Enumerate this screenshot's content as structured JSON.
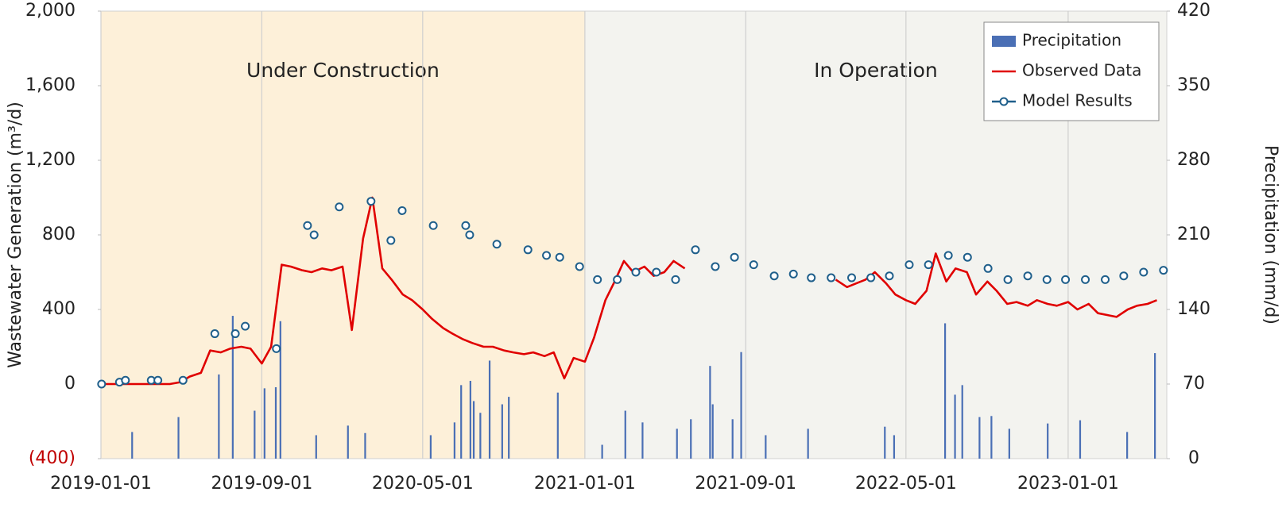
{
  "chart_data": {
    "type": "line",
    "y_label": "Wastewater Generation (m³/d)",
    "y2_label": "Precipitation (mm/d)",
    "xlim": [
      "2019-01-01",
      "2023-05-30"
    ],
    "xticks": [
      "2019-01-01",
      "2019-09-01",
      "2020-05-01",
      "2021-01-01",
      "2021-09-01",
      "2022-05-01",
      "2023-01-01"
    ],
    "ylim": [
      -400,
      2000
    ],
    "yticks": [
      {
        "value": -400,
        "label": "(400)"
      },
      0,
      400,
      800,
      {
        "value": 1200,
        "label": "1,200"
      },
      {
        "value": 1600,
        "label": "1,600"
      },
      {
        "value": 2000,
        "label": "2,000"
      }
    ],
    "negative_tick_color": "#c00000",
    "y2lim": [
      0,
      420
    ],
    "y2ticks": [
      0,
      70,
      140,
      210,
      280,
      350,
      420
    ],
    "grid": true,
    "legend": "upper right",
    "regions": [
      {
        "label": "Under Construction",
        "start": "2019-01-01",
        "end": "2021-01-01",
        "color": "#fdf0d9"
      },
      {
        "label": "In Operation",
        "start": "2021-01-01",
        "end": "2023-05-30",
        "color": "#f3f3ef"
      }
    ],
    "series": [
      {
        "name": "Precipitation",
        "type": "bar",
        "axis": "y2",
        "color": "#4a6fb5",
        "x": [
          "2019-02-17",
          "2019-04-28",
          "2019-06-28",
          "2019-07-19",
          "2019-08-21",
          "2019-09-05",
          "2019-09-22",
          "2019-09-29",
          "2019-11-22",
          "2020-01-09",
          "2020-02-04",
          "2020-05-13",
          "2020-06-18",
          "2020-06-28",
          "2020-07-12",
          "2020-07-17",
          "2020-07-27",
          "2020-08-10",
          "2020-08-29",
          "2020-09-08",
          "2020-11-21",
          "2021-01-27",
          "2021-03-03",
          "2021-03-29",
          "2021-05-20",
          "2021-06-10",
          "2021-07-09",
          "2021-07-13",
          "2021-08-12",
          "2021-08-25",
          "2021-10-01",
          "2021-12-04",
          "2022-03-30",
          "2022-04-13",
          "2022-06-29",
          "2022-07-14",
          "2022-07-25",
          "2022-08-20",
          "2022-09-07",
          "2022-10-04",
          "2022-12-01",
          "2023-01-19",
          "2023-03-31",
          "2023-05-12"
        ],
        "values": [
          25,
          39,
          79,
          134,
          45,
          66,
          67,
          129,
          22,
          31,
          24,
          22,
          34,
          69,
          73,
          54,
          43,
          92,
          51,
          58,
          62,
          13,
          45,
          34,
          28,
          37,
          87,
          51,
          37,
          100,
          22,
          28,
          30,
          22,
          127,
          60,
          69,
          39,
          40,
          28,
          33,
          36,
          25,
          99
        ]
      },
      {
        "name": "Observed Data",
        "type": "line",
        "color": "#e00000",
        "x": [
          "2019-01-01",
          "2019-01-15",
          "2019-02-01",
          "2019-02-15",
          "2019-03-01",
          "2019-03-15",
          "2019-04-01",
          "2019-04-15",
          "2019-05-01",
          "2019-05-15",
          "2019-06-01",
          "2019-06-15",
          "2019-07-01",
          "2019-07-15",
          "2019-08-01",
          "2019-08-15",
          "2019-09-01",
          "2019-09-15",
          "2019-10-01",
          "2019-10-15",
          "2019-11-01",
          "2019-11-15",
          "2019-12-01",
          "2019-12-15",
          "2020-01-01",
          "2020-01-15",
          "2020-02-01",
          "2020-02-15",
          "2020-03-01",
          "2020-03-15",
          "2020-04-01",
          "2020-04-15",
          "2020-05-01",
          "2020-05-15",
          "2020-06-01",
          "2020-06-15",
          "2020-07-01",
          "2020-07-15",
          "2020-08-01",
          "2020-08-15",
          "2020-09-01",
          "2020-09-15",
          "2020-10-01",
          "2020-10-15",
          "2020-11-01",
          "2020-11-15",
          "2020-12-01",
          "2020-12-15",
          "2021-01-01",
          "2021-01-15",
          "2021-02-01",
          "2021-02-15",
          "2021-03-01",
          "2021-03-15",
          "2021-04-01",
          "2021-04-15",
          "2021-05-01",
          "2021-05-15",
          "2021-06-01",
          "2021-06-15",
          "2021-07-01",
          "2021-07-15",
          "2021-08-01",
          "2021-08-15",
          "2021-09-01",
          "2021-09-15",
          "2021-10-01",
          "2021-10-15",
          "2021-11-01",
          "2021-11-15",
          "2021-12-01",
          "2021-12-15",
          "2022-01-01",
          "2022-01-15",
          "2022-02-01",
          "2022-02-15",
          "2022-03-01",
          "2022-03-15",
          "2022-04-01",
          "2022-04-15",
          "2022-05-01",
          "2022-05-15",
          "2022-06-01",
          "2022-06-15",
          "2022-07-01",
          "2022-07-15",
          "2022-08-01",
          "2022-08-15",
          "2022-09-01",
          "2022-09-15",
          "2022-10-01",
          "2022-10-15",
          "2022-11-01",
          "2022-11-15",
          "2022-12-01",
          "2022-12-15",
          "2023-01-01",
          "2023-01-15",
          "2023-02-01",
          "2023-02-15",
          "2023-03-01",
          "2023-03-15",
          "2023-04-01",
          "2023-04-15",
          "2023-05-01",
          "2023-05-15"
        ],
        "values": [
          0,
          0,
          0,
          0,
          0,
          0,
          0,
          0,
          10,
          40,
          60,
          180,
          170,
          190,
          200,
          190,
          110,
          200,
          640,
          630,
          610,
          600,
          620,
          610,
          630,
          290,
          780,
          1000,
          620,
          560,
          480,
          450,
          400,
          350,
          300,
          270,
          240,
          220,
          200,
          200,
          180,
          170,
          160,
          170,
          150,
          170,
          30,
          140,
          120,
          250,
          450,
          550,
          660,
          600,
          630,
          580,
          600,
          660,
          620,
          null,
          null,
          null,
          null,
          null,
          null,
          null,
          null,
          null,
          null,
          null,
          null,
          null,
          null,
          560,
          520,
          540,
          560,
          600,
          540,
          480,
          450,
          430,
          500,
          700,
          550,
          620,
          600,
          480,
          550,
          500,
          430,
          440,
          420,
          450,
          430,
          420,
          440,
          400,
          430,
          380,
          370,
          360,
          400,
          420,
          430,
          450
        ]
      },
      {
        "name": "Model Results",
        "type": "scatter",
        "color": "#1f5f8b",
        "x": [
          "2019-01-02",
          "2019-01-29",
          "2019-02-07",
          "2019-03-18",
          "2019-03-28",
          "2019-05-05",
          "2019-06-22",
          "2019-07-23",
          "2019-08-07",
          "2019-09-23",
          "2019-11-09",
          "2019-11-19",
          "2019-12-27",
          "2020-02-13",
          "2020-03-14",
          "2020-03-31",
          "2020-05-17",
          "2020-07-05",
          "2020-07-11",
          "2020-08-21",
          "2020-10-07",
          "2020-11-04",
          "2020-11-24",
          "2020-12-24",
          "2021-01-20",
          "2021-02-19",
          "2021-03-19",
          "2021-04-19",
          "2021-05-18",
          "2021-06-17",
          "2021-07-17",
          "2021-08-15",
          "2021-09-13",
          "2021-10-14",
          "2021-11-12",
          "2021-12-09",
          "2022-01-08",
          "2022-02-08",
          "2022-03-09",
          "2022-04-06",
          "2022-05-06",
          "2022-06-04",
          "2022-07-04",
          "2022-08-02",
          "2022-09-02",
          "2022-10-02",
          "2022-11-01",
          "2022-11-30",
          "2022-12-28",
          "2023-01-27",
          "2023-02-26",
          "2023-03-26",
          "2023-04-25",
          "2023-05-25"
        ],
        "values": [
          0,
          10,
          20,
          20,
          20,
          20,
          270,
          270,
          310,
          190,
          850,
          800,
          950,
          980,
          770,
          930,
          850,
          850,
          800,
          750,
          720,
          690,
          680,
          630,
          560,
          560,
          600,
          600,
          560,
          720,
          630,
          680,
          640,
          580,
          590,
          570,
          570,
          570,
          570,
          580,
          640,
          640,
          690,
          680,
          620,
          560,
          580,
          560,
          560,
          560,
          560,
          580,
          600,
          610
        ]
      }
    ]
  }
}
